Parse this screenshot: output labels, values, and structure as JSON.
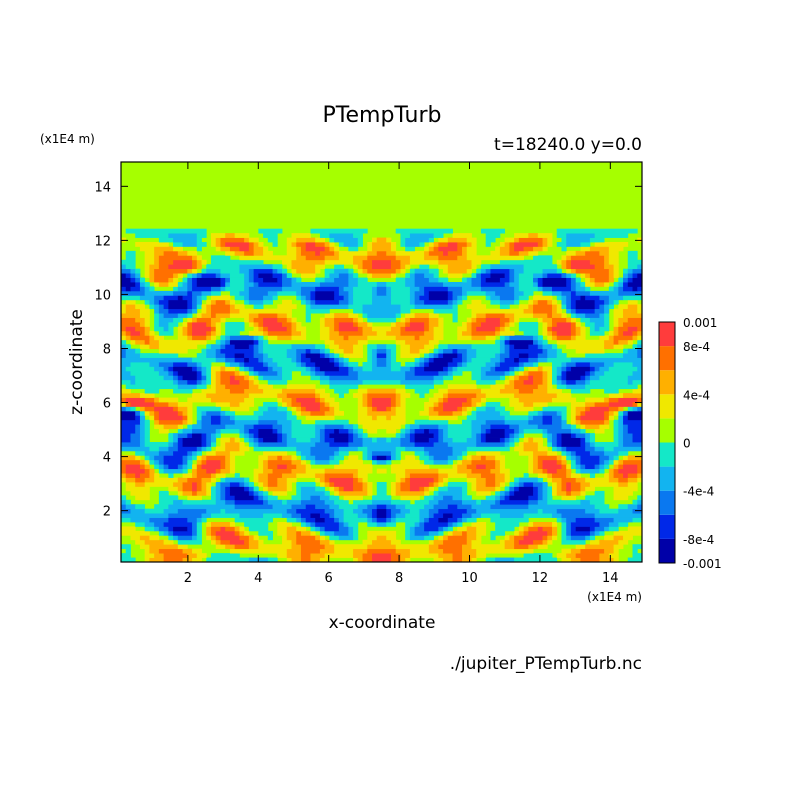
{
  "chart_data": {
    "type": "heatmap",
    "title": "PTempTurb",
    "subtitle": "t=18240.0 y=0.0",
    "xlabel": "x-coordinate",
    "ylabel": "z-coordinate",
    "x_unit": "(x1E4 m)",
    "y_unit": "(x1E4 m)",
    "source": "./jupiter_PTempTurb.nc",
    "xlim": [
      0.1,
      14.9
    ],
    "ylim": [
      0.1,
      14.9
    ],
    "x_ticks": [
      2,
      4,
      6,
      8,
      10,
      12,
      14
    ],
    "y_ticks": [
      2,
      4,
      6,
      8,
      10,
      12,
      14
    ],
    "colorbar": {
      "levels": [
        -0.001,
        -0.0008,
        -0.0006,
        -0.0004,
        -0.0002,
        0,
        0.0002,
        0.0004,
        0.0006,
        0.0008,
        0.001
      ],
      "colors": [
        "#0000a8",
        "#0028e8",
        "#0a78f0",
        "#12b4f0",
        "#14e8c8",
        "#a6ff00",
        "#f0e800",
        "#ffb000",
        "#ff7000",
        "#ff3c3c"
      ],
      "tick_labels": [
        {
          "value": 0.001,
          "label": "0.001"
        },
        {
          "value": 0.0008,
          "label": "8e-4"
        },
        {
          "value": 0.0004,
          "label": "4e-4"
        },
        {
          "value": 0,
          "label": "0"
        },
        {
          "value": -0.0004,
          "label": "-4e-4"
        },
        {
          "value": -0.0008,
          "label": "-8e-4"
        },
        {
          "value": -0.001,
          "label": "-0.001"
        }
      ]
    },
    "background_value": 0.0001,
    "quiescent_above_z": 12.5,
    "features": [
      {
        "x": 3.6,
        "z": 8.5,
        "value": 0.0009
      },
      {
        "x": 3.6,
        "z": 8.3,
        "value": -0.0009
      },
      {
        "x": 11.4,
        "z": 8.5,
        "value": 0.0009
      },
      {
        "x": 11.4,
        "z": 8.3,
        "value": -0.0009
      },
      {
        "x": 0.5,
        "z": 6.0,
        "value": 0.0008
      },
      {
        "x": 0.3,
        "z": 5.6,
        "value": -0.0007
      },
      {
        "x": 14.5,
        "z": 6.0,
        "value": 0.0008
      },
      {
        "x": 14.7,
        "z": 5.6,
        "value": -0.0007
      },
      {
        "x": 7.5,
        "z": 4.0,
        "value": -0.0008
      },
      {
        "x": 7.5,
        "z": 4.2,
        "value": 0.0005
      },
      {
        "x": 2.0,
        "z": 11.0,
        "value": 0.0006
      },
      {
        "x": 13.0,
        "z": 11.0,
        "value": 0.0006
      },
      {
        "x": 2.8,
        "z": 10.5,
        "value": -0.0006
      },
      {
        "x": 12.2,
        "z": 10.5,
        "value": -0.0006
      }
    ]
  }
}
